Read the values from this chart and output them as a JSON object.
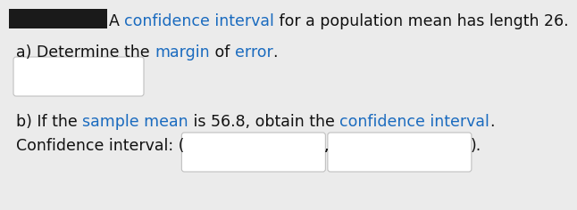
{
  "bg_color": "#ebebeb",
  "box_facecolor": "#ffffff",
  "box_edgecolor": "#c0c0c0",
  "text_color": "#111111",
  "highlight_color": "#1a6bbf",
  "font_size": 12.5,
  "title_segments": [
    [
      "A ",
      "black"
    ],
    [
      "confidence interval",
      "blue"
    ],
    [
      " for a population mean has length 26.",
      "black"
    ]
  ],
  "part_a_segments": [
    [
      "a) Determine the ",
      "black"
    ],
    [
      "margin",
      "blue"
    ],
    [
      " of ",
      "black"
    ],
    [
      "error",
      "blue"
    ],
    [
      ".",
      "black"
    ]
  ],
  "part_b_segments": [
    [
      "b) If the ",
      "black"
    ],
    [
      "sample mean",
      "blue"
    ],
    [
      " is 56.8, obtain the ",
      "black"
    ],
    [
      "confidence interval",
      "blue"
    ],
    [
      ".",
      "black"
    ]
  ],
  "ci_prefix": "Confidence interval: (",
  "ci_suffix": ").",
  "redacted_color": "#1a1a1a"
}
